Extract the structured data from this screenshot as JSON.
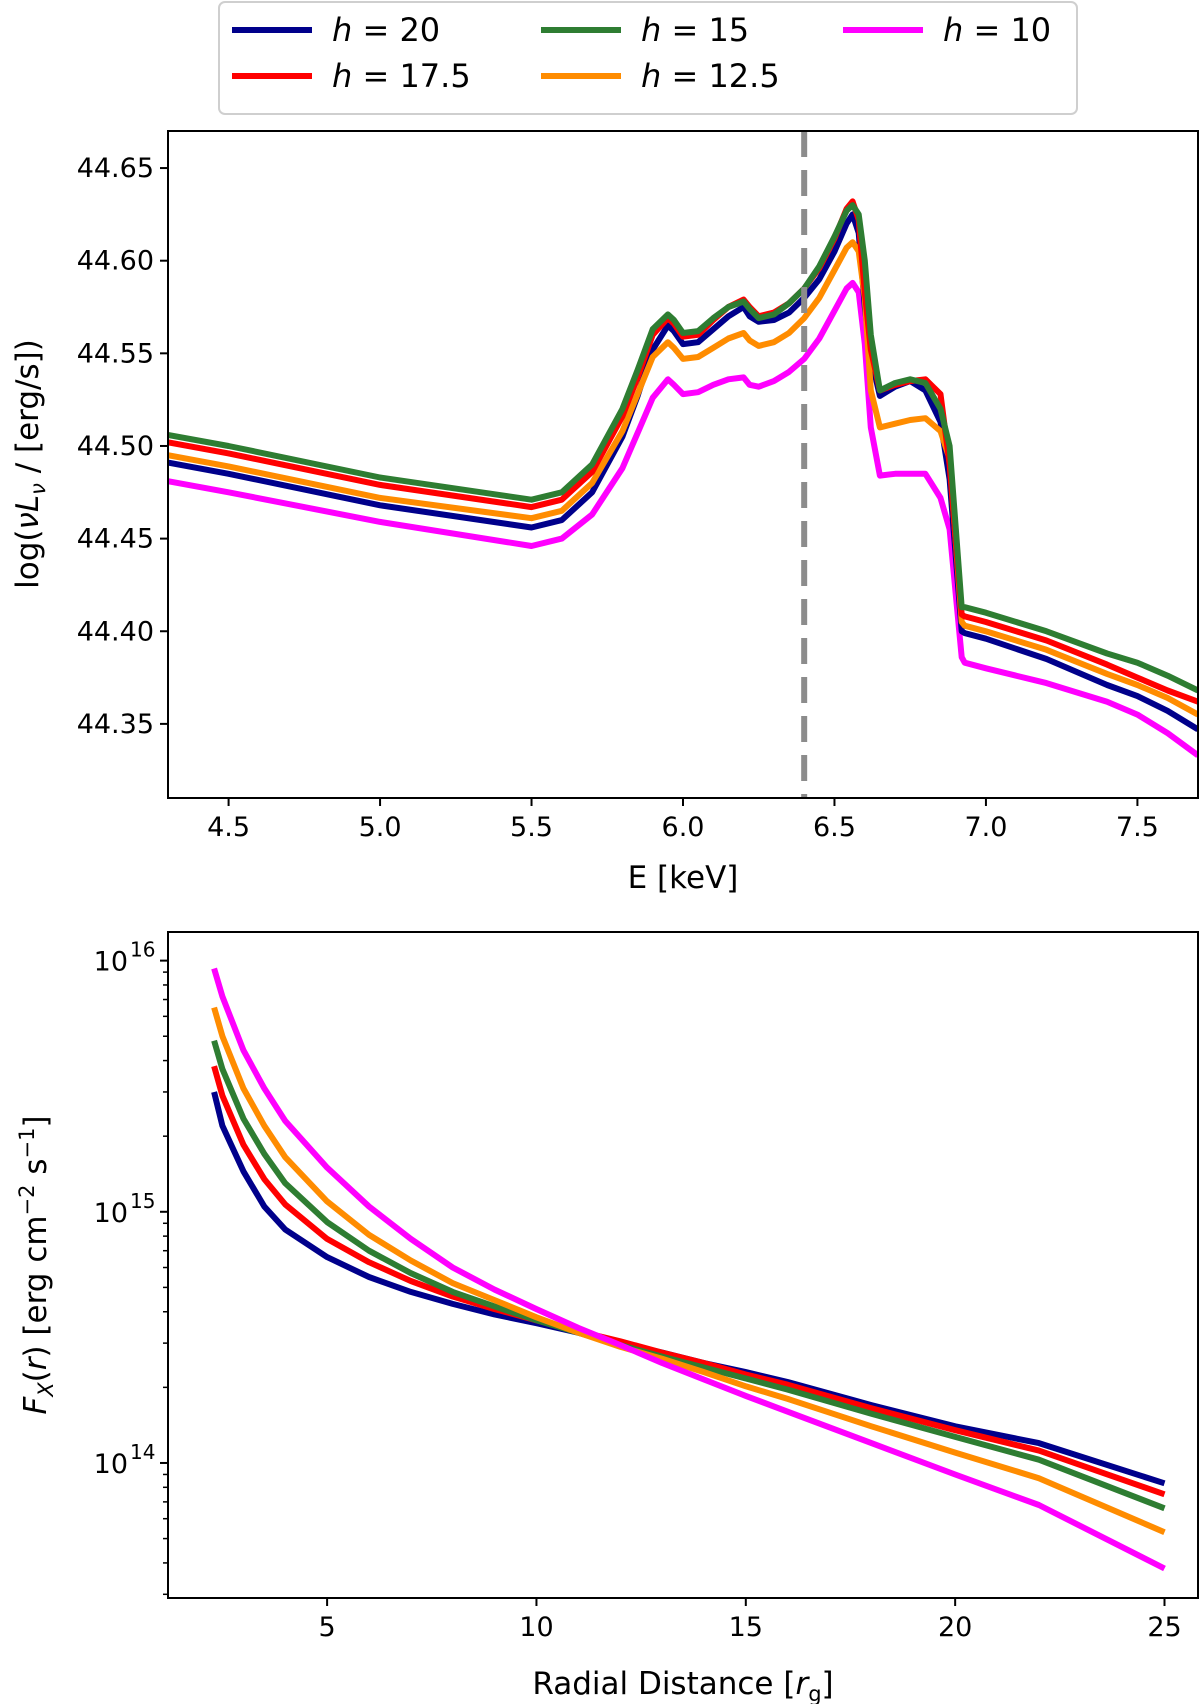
{
  "chart_data": [
    {
      "type": "line",
      "xlabel": "E [keV]",
      "ylabel": "log(νL_ν / [erg/s])",
      "xlim": [
        4.3,
        7.7
      ],
      "ylim": [
        44.31,
        44.67
      ],
      "xticks": [
        "4.5",
        "5.0",
        "5.5",
        "6.0",
        "6.5",
        "7.0",
        "7.5"
      ],
      "xtick_values": [
        4.5,
        5.0,
        5.5,
        6.0,
        6.5,
        7.0,
        7.5
      ],
      "yticks": [
        "44.35",
        "44.40",
        "44.45",
        "44.50",
        "44.55",
        "44.60",
        "44.65"
      ],
      "ytick_values": [
        44.35,
        44.4,
        44.45,
        44.5,
        44.55,
        44.6,
        44.65
      ],
      "vline": {
        "x": 6.4,
        "color": "#8c8c8c",
        "style": "dashed"
      },
      "legend": {
        "placement": "top-center, above plot",
        "entries": [
          {
            "label": "h = 20",
            "color": "#00008b"
          },
          {
            "label": "h = 15",
            "color": "#2e7d32"
          },
          {
            "label": "h = 10",
            "color": "#ff00ff"
          },
          {
            "label": "h = 17.5",
            "color": "#ff0000"
          },
          {
            "label": "h = 12.5",
            "color": "#ff8c00"
          }
        ]
      },
      "x": [
        4.3,
        4.5,
        5.0,
        5.5,
        5.6,
        5.7,
        5.8,
        5.85,
        5.9,
        5.95,
        5.97,
        6.0,
        6.05,
        6.1,
        6.15,
        6.2,
        6.22,
        6.25,
        6.3,
        6.35,
        6.4,
        6.45,
        6.5,
        6.54,
        6.56,
        6.58,
        6.6,
        6.62,
        6.65,
        6.7,
        6.75,
        6.8,
        6.85,
        6.88,
        6.92,
        6.93,
        7.0,
        7.2,
        7.4,
        7.5,
        7.6,
        7.7
      ],
      "series": [
        {
          "name": "h = 20",
          "color": "#00008b",
          "values": [
            44.491,
            44.485,
            44.468,
            44.456,
            44.46,
            44.475,
            44.505,
            44.527,
            44.552,
            44.565,
            44.562,
            44.555,
            44.556,
            44.563,
            44.57,
            44.575,
            44.57,
            44.567,
            44.568,
            44.572,
            44.58,
            44.59,
            44.605,
            44.62,
            44.625,
            44.615,
            44.575,
            44.548,
            44.527,
            44.532,
            44.535,
            44.53,
            44.513,
            44.482,
            44.4,
            44.399,
            44.396,
            44.385,
            44.371,
            44.365,
            44.357,
            44.347
          ]
        },
        {
          "name": "h = 17.5",
          "color": "#ff0000",
          "values": [
            44.502,
            44.496,
            44.479,
            44.467,
            44.471,
            44.486,
            44.516,
            44.537,
            44.56,
            44.569,
            44.566,
            44.559,
            44.56,
            44.568,
            44.575,
            44.579,
            44.575,
            44.57,
            44.572,
            44.577,
            44.585,
            44.596,
            44.612,
            44.628,
            44.632,
            44.622,
            44.583,
            44.552,
            44.53,
            44.533,
            44.535,
            44.536,
            44.528,
            44.49,
            44.409,
            44.408,
            44.405,
            44.395,
            44.382,
            44.375,
            44.368,
            44.362
          ]
        },
        {
          "name": "h = 15",
          "color": "#2e7d32",
          "values": [
            44.506,
            44.5,
            44.483,
            44.471,
            44.475,
            44.49,
            44.52,
            44.541,
            44.563,
            44.571,
            44.568,
            44.561,
            44.562,
            44.569,
            44.575,
            44.578,
            44.574,
            44.569,
            44.571,
            44.577,
            44.585,
            44.597,
            44.613,
            44.627,
            44.63,
            44.625,
            44.6,
            44.56,
            44.53,
            44.534,
            44.536,
            44.534,
            44.52,
            44.5,
            44.413,
            44.413,
            44.41,
            44.4,
            44.388,
            44.383,
            44.376,
            44.368
          ]
        },
        {
          "name": "h = 12.5",
          "color": "#ff8c00",
          "values": [
            44.495,
            44.489,
            44.472,
            44.461,
            44.465,
            44.48,
            44.508,
            44.528,
            44.548,
            44.556,
            44.553,
            44.547,
            44.548,
            44.553,
            44.558,
            44.561,
            44.557,
            44.554,
            44.556,
            44.561,
            44.569,
            44.58,
            44.595,
            44.607,
            44.61,
            44.605,
            44.58,
            44.53,
            44.51,
            44.512,
            44.514,
            44.515,
            44.508,
            44.493,
            44.405,
            44.403,
            44.4,
            44.39,
            44.377,
            44.371,
            44.364,
            44.355
          ]
        },
        {
          "name": "h = 10",
          "color": "#ff00ff",
          "values": [
            44.481,
            44.475,
            44.459,
            44.446,
            44.45,
            44.463,
            44.488,
            44.507,
            44.526,
            44.536,
            44.533,
            44.528,
            44.529,
            44.533,
            44.536,
            44.537,
            44.533,
            44.532,
            44.535,
            44.54,
            44.547,
            44.558,
            44.573,
            44.585,
            44.588,
            44.583,
            44.555,
            44.51,
            44.484,
            44.485,
            44.485,
            44.485,
            44.472,
            44.455,
            44.386,
            44.383,
            44.38,
            44.372,
            44.362,
            44.355,
            44.345,
            44.333
          ]
        }
      ]
    },
    {
      "type": "line",
      "xlabel": "Radial Distance [r_g]",
      "ylabel": "F_X(r) [erg cm^−2 s^−1]",
      "yscale": "log",
      "xlim": [
        1.2,
        25.8
      ],
      "ylim": [
        29000000000000.0,
        1.3e+16
      ],
      "xticks": [
        "5",
        "10",
        "15",
        "20",
        "25"
      ],
      "xtick_values": [
        5,
        10,
        15,
        20,
        25
      ],
      "yticks": [
        "10",
        "10",
        "10"
      ],
      "ytick_exponents": [
        "16",
        "15",
        "14"
      ],
      "ytick_values": [
        1e+16,
        1000000000000000.0,
        100000000000000.0
      ],
      "x": [
        2.3,
        2.5,
        3.0,
        3.5,
        4.0,
        5.0,
        6.0,
        7.0,
        8.0,
        9.0,
        10.0,
        11.0,
        12.0,
        13.0,
        14.0,
        15.0,
        16.0,
        18.0,
        20.0,
        22.0,
        25.0
      ],
      "series": [
        {
          "name": "h = 20",
          "color": "#00008b",
          "values": [
            3000000000000000.0,
            2200000000000000.0,
            1450000000000000.0,
            1050000000000000.0,
            850000000000000.0,
            660000000000000.0,
            550000000000000.0,
            480000000000000.0,
            430000000000000.0,
            390000000000000.0,
            360000000000000.0,
            330000000000000.0,
            300000000000000.0,
            275000000000000.0,
            250000000000000.0,
            230000000000000.0,
            210000000000000.0,
            170000000000000.0,
            140000000000000.0,
            120000000000000.0,
            83000000000000.0
          ]
        },
        {
          "name": "h = 17.5",
          "color": "#ff0000",
          "values": [
            3800000000000000.0,
            2900000000000000.0,
            1850000000000000.0,
            1350000000000000.0,
            1070000000000000.0,
            780000000000000.0,
            630000000000000.0,
            530000000000000.0,
            460000000000000.0,
            410000000000000.0,
            370000000000000.0,
            335000000000000.0,
            305000000000000.0,
            275000000000000.0,
            250000000000000.0,
            225000000000000.0,
            205000000000000.0,
            165000000000000.0,
            135000000000000.0,
            112000000000000.0,
            75000000000000.0
          ]
        },
        {
          "name": "h = 15",
          "color": "#2e7d32",
          "values": [
            4800000000000000.0,
            3700000000000000.0,
            2350000000000000.0,
            1700000000000000.0,
            1300000000000000.0,
            910000000000000.0,
            700000000000000.0,
            570000000000000.0,
            480000000000000.0,
            420000000000000.0,
            370000000000000.0,
            330000000000000.0,
            295000000000000.0,
            265000000000000.0,
            240000000000000.0,
            217000000000000.0,
            196000000000000.0,
            157000000000000.0,
            127000000000000.0,
            103000000000000.0,
            66000000000000.0
          ]
        },
        {
          "name": "h = 12.5",
          "color": "#ff8c00",
          "values": [
            6500000000000000.0,
            5000000000000000.0,
            3100000000000000.0,
            2200000000000000.0,
            1650000000000000.0,
            1100000000000000.0,
            810000000000000.0,
            640000000000000.0,
            520000000000000.0,
            445000000000000.0,
            380000000000000.0,
            330000000000000.0,
            290000000000000.0,
            260000000000000.0,
            230000000000000.0,
            202000000000000.0,
            180000000000000.0,
            140000000000000.0,
            110000000000000.0,
            87000000000000.0,
            53000000000000.0
          ]
        },
        {
          "name": "h = 10",
          "color": "#ff00ff",
          "values": [
            9300000000000000.0,
            7200000000000000.0,
            4400000000000000.0,
            3100000000000000.0,
            2300000000000000.0,
            1500000000000000.0,
            1050000000000000.0,
            780000000000000.0,
            600000000000000.0,
            490000000000000.0,
            410000000000000.0,
            345000000000000.0,
            295000000000000.0,
            250000000000000.0,
            215000000000000.0,
            185000000000000.0,
            160000000000000.0,
            120000000000000.0,
            90000000000000.0,
            68000000000000.0,
            38000000000000.0
          ]
        }
      ]
    }
  ]
}
